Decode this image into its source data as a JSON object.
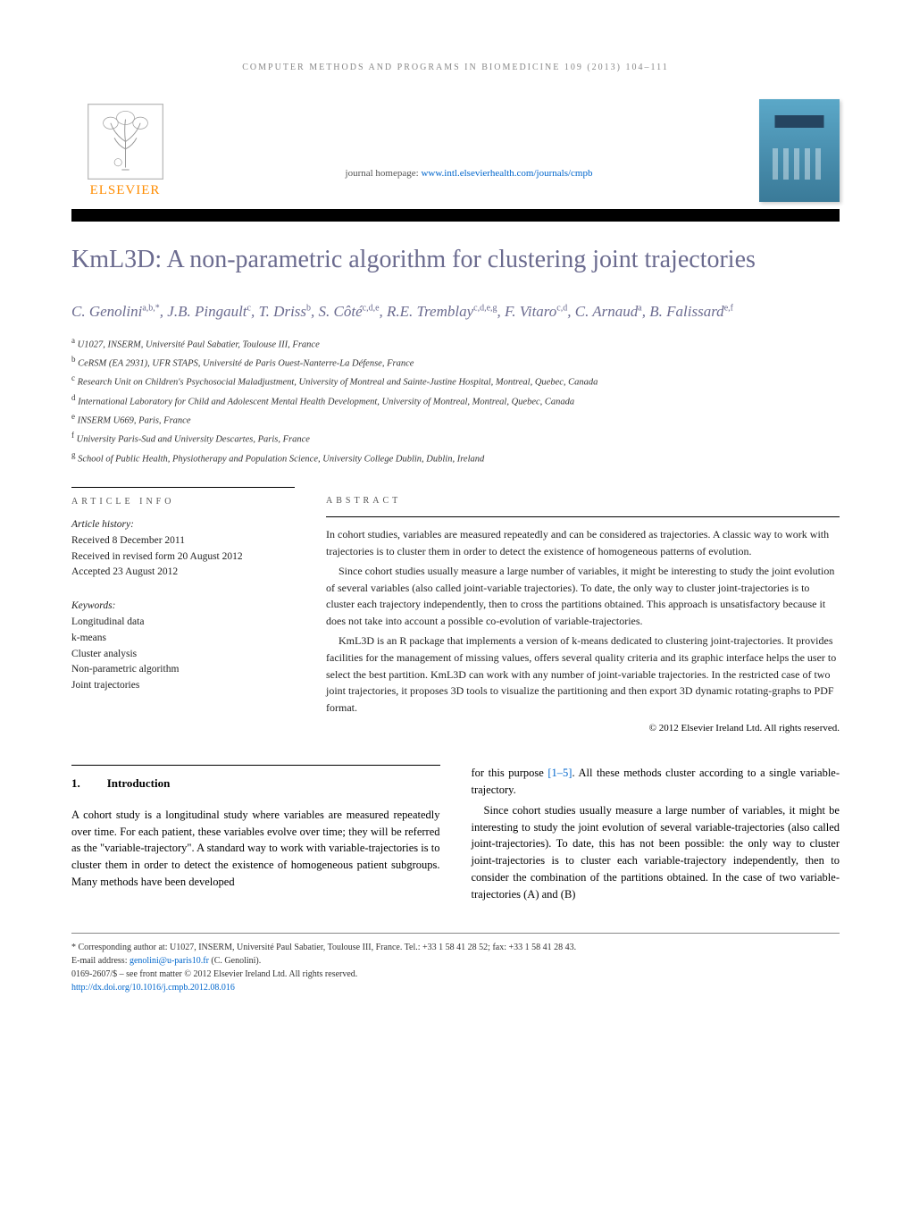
{
  "header": {
    "running_head": "COMPUTER METHODS AND PROGRAMS IN BIOMEDICINE 109 (2013) 104–111",
    "publisher_label": "ELSEVIER",
    "homepage_prefix": "journal homepage: ",
    "homepage_url": "www.intl.elsevierhealth.com/journals/cmpb"
  },
  "title": "KmL3D: A non-parametric algorithm for clustering joint trajectories",
  "authors_html": "C. Genolini<sup>a,b,*</sup>, J.B. Pingault<sup>c</sup>, T. Driss<sup>b</sup>, S. Côté<sup>c,d,e</sup>, R.E. Tremblay<sup>c,d,e,g</sup>, F. Vitaro<sup>c,d</sup>, C. Arnaud<sup>a</sup>, B. Falissard<sup>e,f</sup>",
  "affiliations": [
    {
      "sup": "a",
      "text": "U1027, INSERM, Université Paul Sabatier, Toulouse III, France"
    },
    {
      "sup": "b",
      "text": "CeRSM (EA 2931), UFR STAPS, Université de Paris Ouest-Nanterre-La Défense, France"
    },
    {
      "sup": "c",
      "text": "Research Unit on Children's Psychosocial Maladjustment, University of Montreal and Sainte-Justine Hospital, Montreal, Quebec, Canada"
    },
    {
      "sup": "d",
      "text": "International Laboratory for Child and Adolescent Mental Health Development, University of Montreal, Montreal, Quebec, Canada"
    },
    {
      "sup": "e",
      "text": "INSERM U669, Paris, France"
    },
    {
      "sup": "f",
      "text": "University Paris-Sud and University Descartes, Paris, France"
    },
    {
      "sup": "g",
      "text": "School of Public Health, Physiotherapy and Population Science, University College Dublin, Dublin, Ireland"
    }
  ],
  "article_info": {
    "label": "ARTICLE INFO",
    "history_label": "Article history:",
    "received": "Received 8 December 2011",
    "revised": "Received in revised form 20 August 2012",
    "accepted": "Accepted 23 August 2012",
    "keywords_label": "Keywords:",
    "keywords": [
      "Longitudinal data",
      "k-means",
      "Cluster analysis",
      "Non-parametric algorithm",
      "Joint trajectories"
    ]
  },
  "abstract": {
    "label": "ABSTRACT",
    "paragraphs": [
      "In cohort studies, variables are measured repeatedly and can be considered as trajectories. A classic way to work with trajectories is to cluster them in order to detect the existence of homogeneous patterns of evolution.",
      "Since cohort studies usually measure a large number of variables, it might be interesting to study the joint evolution of several variables (also called joint-variable trajectories). To date, the only way to cluster joint-trajectories is to cluster each trajectory independently, then to cross the partitions obtained. This approach is unsatisfactory because it does not take into account a possible co-evolution of variable-trajectories.",
      "KmL3D is an R package that implements a version of k-means dedicated to clustering joint-trajectories. It provides facilities for the management of missing values, offers several quality criteria and its graphic interface helps the user to select the best partition. KmL3D can work with any number of joint-variable trajectories. In the restricted case of two joint trajectories, it proposes 3D tools to visualize the partitioning and then export 3D dynamic rotating-graphs to PDF format."
    ],
    "copyright": "© 2012 Elsevier Ireland Ltd. All rights reserved."
  },
  "intro": {
    "number": "1.",
    "heading": "Introduction",
    "col1": [
      "A cohort study is a longitudinal study where variables are measured repeatedly over time. For each patient, these variables evolve over time; they will be referred as the \"variable-trajectory\". A standard way to work with variable-trajectories is to cluster them in order to detect the existence of homogeneous patient subgroups. Many methods have been developed"
    ],
    "col2": [
      "for this purpose [1–5]. All these methods cluster according to a single variable-trajectory.",
      "Since cohort studies usually measure a large number of variables, it might be interesting to study the joint evolution of several variable-trajectories (also called joint-trajectories). To date, this has not been possible: the only way to cluster joint-trajectories is to cluster each variable-trajectory independently, then to consider the combination of the partitions obtained. In the case of two variable-trajectories (A) and (B)"
    ],
    "ref_text": "[1–5]"
  },
  "footer": {
    "corresponding": "* Corresponding author at: U1027, INSERM, Université Paul Sabatier, Toulouse III, France. Tel.: +33 1 58 41 28 52; fax: +33 1 58 41 28 43.",
    "email_label": "E-mail address: ",
    "email": "genolini@u-paris10.fr",
    "email_suffix": " (C. Genolini).",
    "issn": "0169-2607/$ – see front matter © 2012 Elsevier Ireland Ltd. All rights reserved.",
    "doi_url": "http://dx.doi.org/10.1016/j.cmpb.2012.08.016"
  },
  "colors": {
    "title_color": "#6b6b8f",
    "link_color": "#0066cc",
    "elsevier_orange": "#ff8c00",
    "bar_color": "#000000"
  }
}
